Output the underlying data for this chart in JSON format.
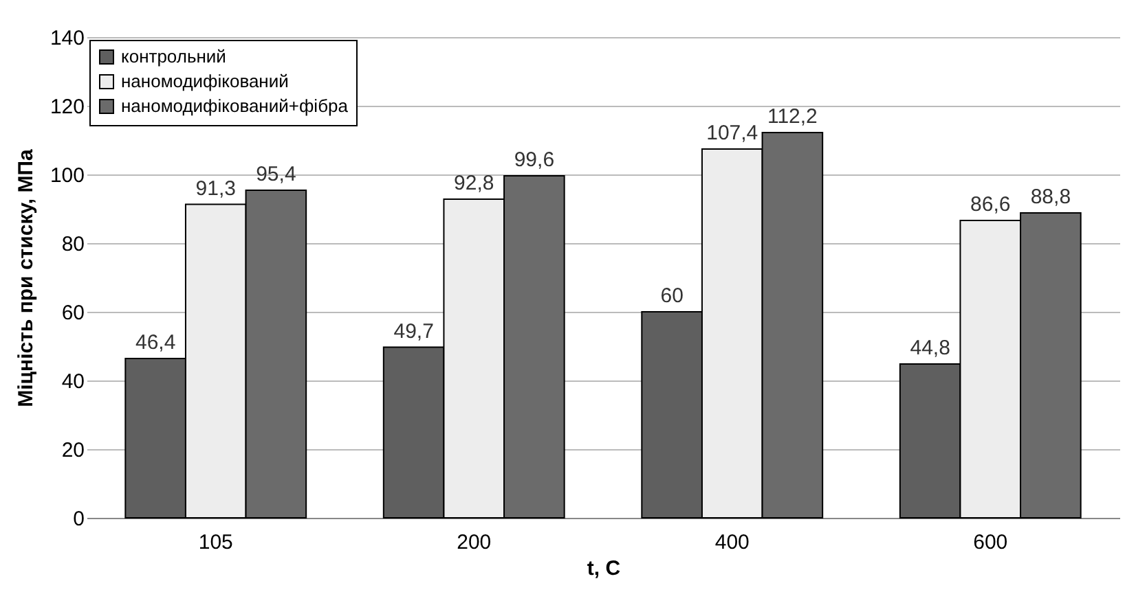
{
  "chart_data": {
    "type": "bar",
    "xlabel": "t,  C",
    "ylabel": "Міцність при стиску, МПа",
    "categories": [
      "105",
      "200",
      "400",
      "600"
    ],
    "series": [
      {
        "name": "контрольний",
        "color": "#5f5f5f",
        "values": [
          46.4,
          49.7,
          60,
          44.8
        ],
        "value_labels": [
          "46,4",
          "49,7",
          "60",
          "44,8"
        ]
      },
      {
        "name": "наномодифікований",
        "color": "#ededed",
        "values": [
          91.3,
          92.8,
          107.4,
          86.6
        ],
        "value_labels": [
          "91,3",
          "92,8",
          "107,4",
          "86,6"
        ]
      },
      {
        "name": "наномодифікований+фібра",
        "color": "#6b6b6b",
        "values": [
          95.4,
          99.6,
          112.2,
          88.8
        ],
        "value_labels": [
          "95,4",
          "99,6",
          "112,2",
          "88,8"
        ]
      }
    ],
    "ylim": [
      0,
      140
    ],
    "yticks": [
      0,
      20,
      40,
      60,
      80,
      100,
      120,
      140
    ],
    "grid": "y",
    "legend": "top left"
  }
}
